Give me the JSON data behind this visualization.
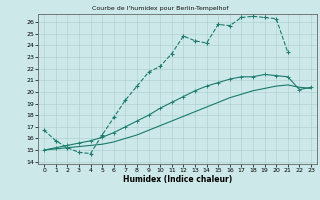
{
  "title": "Courbe de l'humidex pour Berlin-Tempelhof",
  "xlabel": "Humidex (Indice chaleur)",
  "bg_color": "#cde8e8",
  "line_color": "#1a7a6e",
  "grid_color": "#aacccc",
  "xlim": [
    -0.5,
    23.5
  ],
  "ylim": [
    13.8,
    26.7
  ],
  "xticks": [
    0,
    1,
    2,
    3,
    4,
    5,
    6,
    7,
    8,
    9,
    10,
    11,
    12,
    13,
    14,
    15,
    16,
    17,
    18,
    19,
    20,
    21,
    22,
    23
  ],
  "yticks": [
    14,
    15,
    16,
    17,
    18,
    19,
    20,
    21,
    22,
    23,
    24,
    25,
    26
  ],
  "line1_x": [
    0,
    1,
    2,
    3,
    4,
    5,
    6,
    7,
    8,
    9,
    10,
    11,
    12,
    13,
    14,
    15,
    16,
    17,
    18,
    19,
    20,
    21
  ],
  "line1_y": [
    16.7,
    15.8,
    15.2,
    14.8,
    14.7,
    16.3,
    17.8,
    19.3,
    20.5,
    21.7,
    22.2,
    23.3,
    24.8,
    24.4,
    24.2,
    25.8,
    25.7,
    26.4,
    26.5,
    26.4,
    26.3,
    23.4
  ],
  "line2_x": [
    0,
    1,
    2,
    3,
    4,
    5,
    6,
    7,
    8,
    9,
    10,
    11,
    12,
    13,
    14,
    15,
    16,
    17,
    18,
    19,
    20,
    21,
    22,
    23
  ],
  "line2_y": [
    15.0,
    15.2,
    15.4,
    15.6,
    15.8,
    16.1,
    16.5,
    17.0,
    17.5,
    18.0,
    18.6,
    19.1,
    19.6,
    20.1,
    20.5,
    20.8,
    21.1,
    21.3,
    21.3,
    21.5,
    21.4,
    21.3,
    20.2,
    20.4
  ],
  "line3_x": [
    0,
    1,
    2,
    3,
    4,
    5,
    6,
    7,
    8,
    9,
    10,
    11,
    12,
    13,
    14,
    15,
    16,
    17,
    18,
    19,
    20,
    21,
    22,
    23
  ],
  "line3_y": [
    15.0,
    15.1,
    15.2,
    15.3,
    15.4,
    15.5,
    15.7,
    16.0,
    16.3,
    16.7,
    17.1,
    17.5,
    17.9,
    18.3,
    18.7,
    19.1,
    19.5,
    19.8,
    20.1,
    20.3,
    20.5,
    20.6,
    20.4,
    20.3
  ]
}
